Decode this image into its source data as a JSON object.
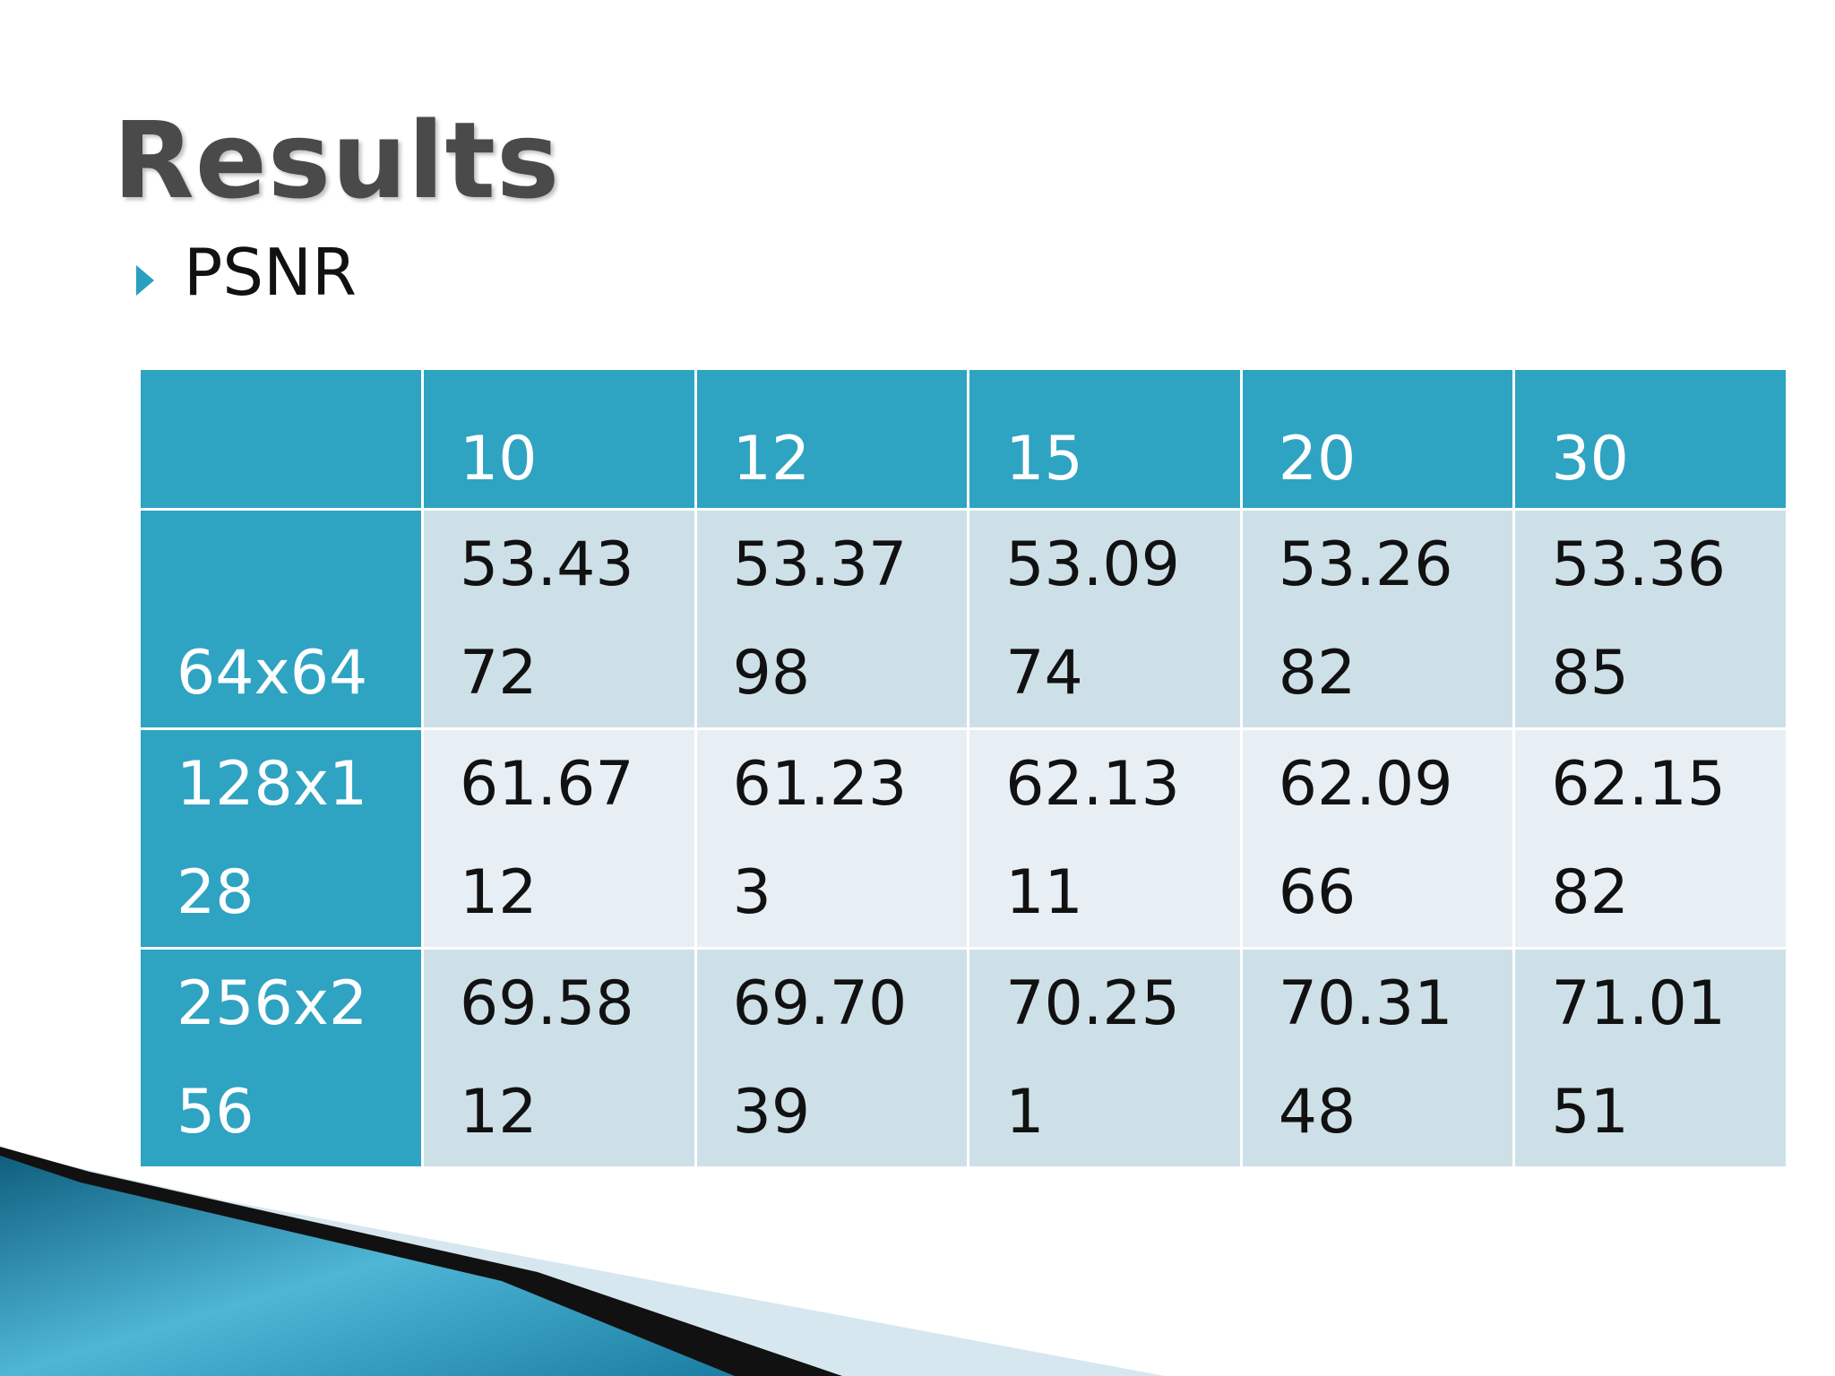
{
  "header": {
    "title": "Results",
    "bullet": "PSNR"
  },
  "table": {
    "columns": [
      "10",
      "12",
      "15",
      "20",
      "30"
    ],
    "rows": [
      {
        "label": "64x64",
        "cells": [
          "53.4372",
          "53.3798",
          "53.0974",
          "53.2682",
          "53.3685"
        ]
      },
      {
        "label": "128x128",
        "cells": [
          "61.6712",
          "61.233",
          "62.1311",
          "62.0966",
          "62.1582"
        ]
      },
      {
        "label": "256x256",
        "cells": [
          "69.5812",
          "69.7039",
          "70.251",
          "70.3148",
          "71.0151"
        ]
      }
    ]
  }
}
